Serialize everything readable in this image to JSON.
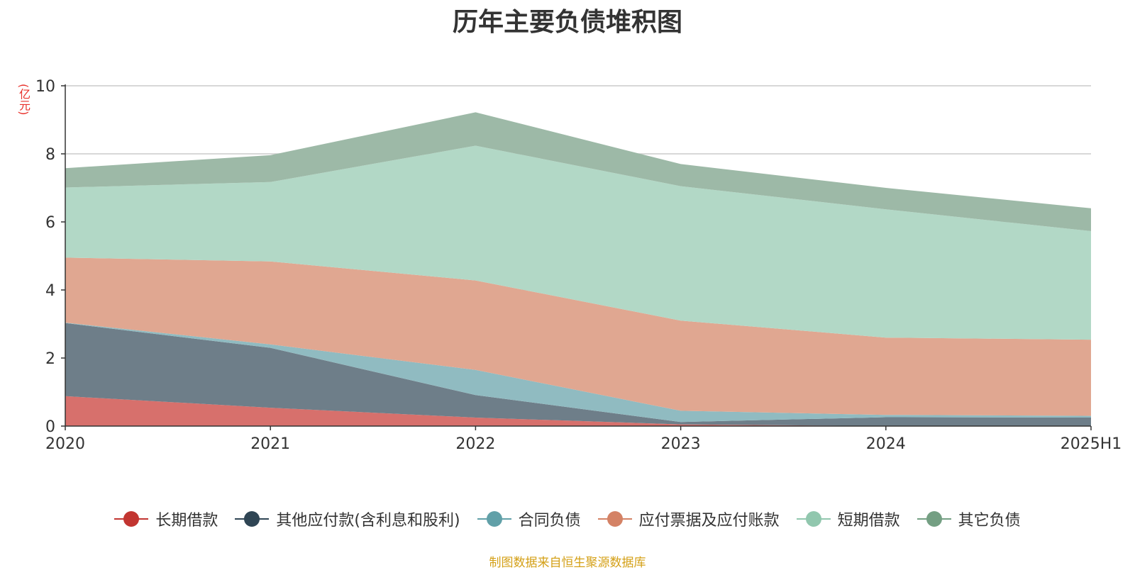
{
  "title": "历年主要负债堆积图",
  "y_unit": "(亿元)",
  "source_note": "制图数据来自恒生聚源数据库",
  "chart_data": {
    "type": "area",
    "stacked": true,
    "title": "历年主要负债堆积图",
    "ylabel": "(亿元)",
    "xlabel": "",
    "x": [
      "2020",
      "2021",
      "2022",
      "2023",
      "2024",
      "2025H1"
    ],
    "ylim": [
      0,
      10
    ],
    "yticks": [
      0,
      2,
      4,
      6,
      8,
      10
    ],
    "grid": true,
    "legend_position": "bottom",
    "series": [
      {
        "name": "长期借款",
        "color": "#c23531",
        "fill": "#d7706c",
        "values": [
          0.88,
          0.54,
          0.25,
          0.05,
          0.0,
          0.0
        ]
      },
      {
        "name": "其他应付款(含利息和股利)",
        "color": "#2f4554",
        "fill": "#6e7e89",
        "values": [
          2.15,
          1.76,
          0.66,
          0.07,
          0.26,
          0.25
        ]
      },
      {
        "name": "合同负债",
        "color": "#61a0a8",
        "fill": "#90bbc1",
        "values": [
          0.01,
          0.1,
          0.74,
          0.33,
          0.07,
          0.05
        ]
      },
      {
        "name": "应付票据及应付账款",
        "color": "#d48265",
        "fill": "#e0a791",
        "values": [
          1.91,
          2.44,
          2.63,
          2.65,
          2.27,
          2.24
        ]
      },
      {
        "name": "短期借款",
        "color": "#91c7ae",
        "fill": "#b2d8c6",
        "values": [
          2.06,
          2.33,
          3.96,
          3.95,
          3.77,
          3.19
        ]
      },
      {
        "name": "其它负债",
        "color": "#749f83",
        "fill": "#9db9a7",
        "values": [
          0.57,
          0.79,
          0.98,
          0.65,
          0.63,
          0.67
        ]
      }
    ]
  }
}
